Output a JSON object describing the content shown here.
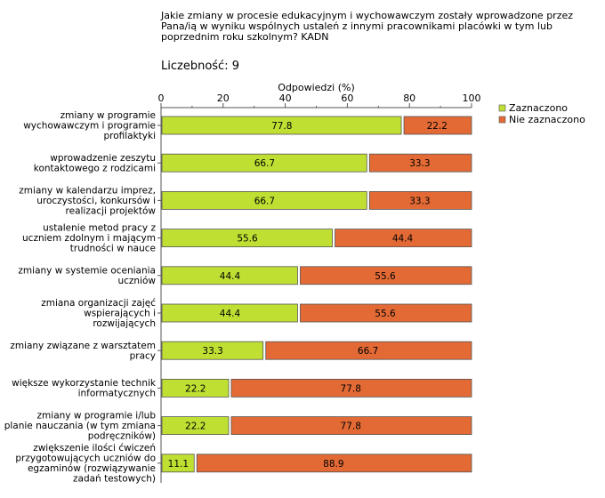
{
  "header": {
    "question": "Jakie zmiany w procesie edukacyjnym i wychowawczym zostały wprowadzone przez Pana/ią w wyniku wspólnych ustaleń z innymi pracownikami placówki w tym lub poprzednim roku szkolnym? KADN",
    "count_label": "Liczebność:",
    "count_value": "9"
  },
  "colors": {
    "series_1": "#bfe033",
    "series_2": "#e36a35",
    "stroke": "#555555"
  },
  "chart_data": {
    "type": "bar",
    "orientation": "horizontal",
    "stacked": true,
    "title": "Jakie zmiany w procesie edukacyjnym i wychowawczym zostały wprowadzone przez Pana/ią w wyniku wspólnych ustaleń z innymi pracownikami placówki w tym lub poprzednim roku szkolnym? KADN",
    "xlabel": "Odpowiedzi (%)",
    "ylabel": "",
    "xlim": [
      0,
      100
    ],
    "xticks": [
      0,
      20,
      40,
      60,
      80,
      100
    ],
    "legend_position": "right",
    "categories": [
      [
        "zmiany w programie",
        "wychowawczym i programie",
        "profilaktyki"
      ],
      [
        "wprowadzenie zeszytu",
        "kontaktowego z rodzicami"
      ],
      [
        "zmiany w kalendarzu imprez,",
        "uroczystości, konkursów i",
        "realizacji projektów"
      ],
      [
        "ustalenie metod pracy z",
        "uczniem zdolnym i mającym",
        "trudności w nauce"
      ],
      [
        "zmiany w systemie oceniania",
        "uczniów"
      ],
      [
        "zmiana organizacji zajęć",
        "wspierających i",
        "rozwijających"
      ],
      [
        "zmiany związane z warsztatem",
        "pracy"
      ],
      [
        "większe wykorzystanie technik",
        "informatycznych"
      ],
      [
        "zmiany w programie i/lub",
        "planie nauczania (w tym zmiana",
        "podręczników)"
      ],
      [
        "zwiększenie ilości ćwiczeń",
        "przygotowujących uczniów do",
        "egzaminów (rozwiązywanie",
        "zadań testowych)"
      ]
    ],
    "series": [
      {
        "name": "Zaznaczono",
        "values": [
          77.8,
          66.7,
          66.7,
          55.6,
          44.4,
          44.4,
          33.3,
          22.2,
          22.2,
          11.1
        ]
      },
      {
        "name": "Nie zaznaczono",
        "values": [
          22.2,
          33.3,
          33.3,
          44.4,
          55.6,
          55.6,
          66.7,
          77.8,
          77.8,
          88.9
        ]
      }
    ]
  }
}
